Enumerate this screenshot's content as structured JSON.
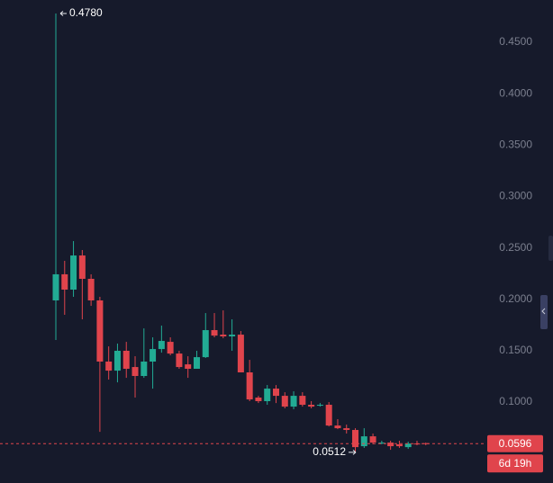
{
  "chart_data": {
    "type": "candlestick",
    "open": [
      0.1989,
      0.2243,
      0.2094,
      0.2426,
      0.2199,
      0.1989,
      0.1394,
      0.1306,
      0.1499,
      0.1341,
      0.1254,
      0.1394,
      0.1516,
      0.1586,
      0.1472,
      0.1367,
      0.1324,
      0.1437,
      0.17,
      0.1656,
      0.1639,
      0.1656,
      0.1289,
      0.1044,
      0.1009,
      0.1131,
      0.1061,
      0.0956,
      0.1061,
      0.0974,
      0.0965,
      0.0974,
      0.0772,
      0.0746,
      0.0729,
      0.0571,
      0.0667,
      0.0597,
      0.0606,
      0.0589,
      0.0562,
      0.0597,
      0.06
    ],
    "high": [
      0.478,
      0.2374,
      0.2566,
      0.2479,
      0.2243,
      0.2024,
      0.1542,
      0.1569,
      0.1586,
      0.1446,
      0.1717,
      0.163,
      0.1744,
      0.163,
      0.1499,
      0.1446,
      0.1499,
      0.1866,
      0.1866,
      0.1892,
      0.1805,
      0.1691,
      0.1411,
      0.1061,
      0.1166,
      0.1166,
      0.1096,
      0.1105,
      0.1096,
      0.1009,
      0.0991,
      0.1,
      0.0834,
      0.0781,
      0.0746,
      0.0746,
      0.0694,
      0.0624,
      0.0624,
      0.0624,
      0.0615,
      0.0624,
      0.0606
    ],
    "low": [
      0.1604,
      0.1849,
      0.2024,
      0.1805,
      0.1936,
      0.0711,
      0.1219,
      0.1192,
      0.1236,
      0.1044,
      0.1236,
      0.1131,
      0.1481,
      0.1455,
      0.1324,
      0.1236,
      0.1324,
      0.1429,
      0.163,
      0.1621,
      0.1499,
      0.1289,
      0.1009,
      0.0991,
      0.0974,
      0.0991,
      0.0939,
      0.093,
      0.0956,
      0.0939,
      0.0956,
      0.0763,
      0.0737,
      0.0694,
      0.0512,
      0.0554,
      0.0589,
      0.0589,
      0.0536,
      0.0554,
      0.0545,
      0.058,
      0.058
    ],
    "close": [
      0.2243,
      0.2094,
      0.2426,
      0.2199,
      0.1989,
      0.1394,
      0.1306,
      0.1499,
      0.1324,
      0.1254,
      0.1394,
      0.1516,
      0.1595,
      0.1472,
      0.1341,
      0.1324,
      0.1437,
      0.17,
      0.1647,
      0.1639,
      0.1656,
      0.1289,
      0.1026,
      0.1009,
      0.1131,
      0.1061,
      0.0956,
      0.1061,
      0.0974,
      0.0956,
      0.0974,
      0.0772,
      0.0746,
      0.0729,
      0.0562,
      0.0667,
      0.0606,
      0.0606,
      0.0571,
      0.0571,
      0.0597,
      0.0589,
      0.0596
    ],
    "up_color": "#22ab94",
    "down_color": "#e0444c",
    "ylim": [
      0.0213,
      0.4911
    ],
    "yticks": [
      {
        "value": 0.1,
        "label": "0.1000"
      },
      {
        "value": 0.15,
        "label": "0.1500"
      },
      {
        "value": 0.2,
        "label": "0.2000"
      },
      {
        "value": 0.25,
        "label": "0.2500"
      },
      {
        "value": 0.3,
        "label": "0.3000"
      },
      {
        "value": 0.35,
        "label": "0.3500"
      },
      {
        "value": 0.4,
        "label": "0.4000"
      },
      {
        "value": 0.45,
        "label": "0.4500"
      }
    ],
    "high_annotation": {
      "value": 0.478,
      "label": "0.4780"
    },
    "low_annotation": {
      "value": 0.0512,
      "label": "0.0512"
    },
    "last_price": {
      "value": 0.0596,
      "label": "0.0596"
    },
    "countdown": "6d 19h"
  }
}
